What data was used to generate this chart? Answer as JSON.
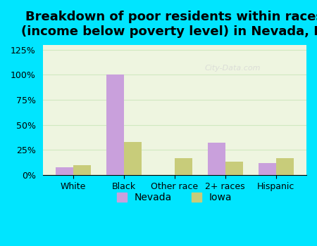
{
  "categories": [
    "White",
    "Black",
    "Other race",
    "2+ races",
    "Hispanic"
  ],
  "nevada_values": [
    8,
    100,
    0,
    32,
    12
  ],
  "iowa_values": [
    10,
    33,
    17,
    13,
    17
  ],
  "nevada_color": "#c9a0dc",
  "iowa_color": "#c8cc7a",
  "title": "Breakdown of poor residents within races\n(income below poverty level) in Nevada, IA",
  "title_fontsize": 13,
  "ylim": [
    0,
    130
  ],
  "yticks": [
    0,
    25,
    50,
    75,
    100,
    125
  ],
  "ytick_labels": [
    "0%",
    "25%",
    "50%",
    "75%",
    "100%",
    "125%"
  ],
  "bar_width": 0.35,
  "legend_labels": [
    "Nevada",
    "Iowa"
  ],
  "background_outer": "#00e5ff",
  "background_inner": "#eef5e0",
  "grid_color": "#d0e8c0",
  "watermark": "City-Data.com"
}
